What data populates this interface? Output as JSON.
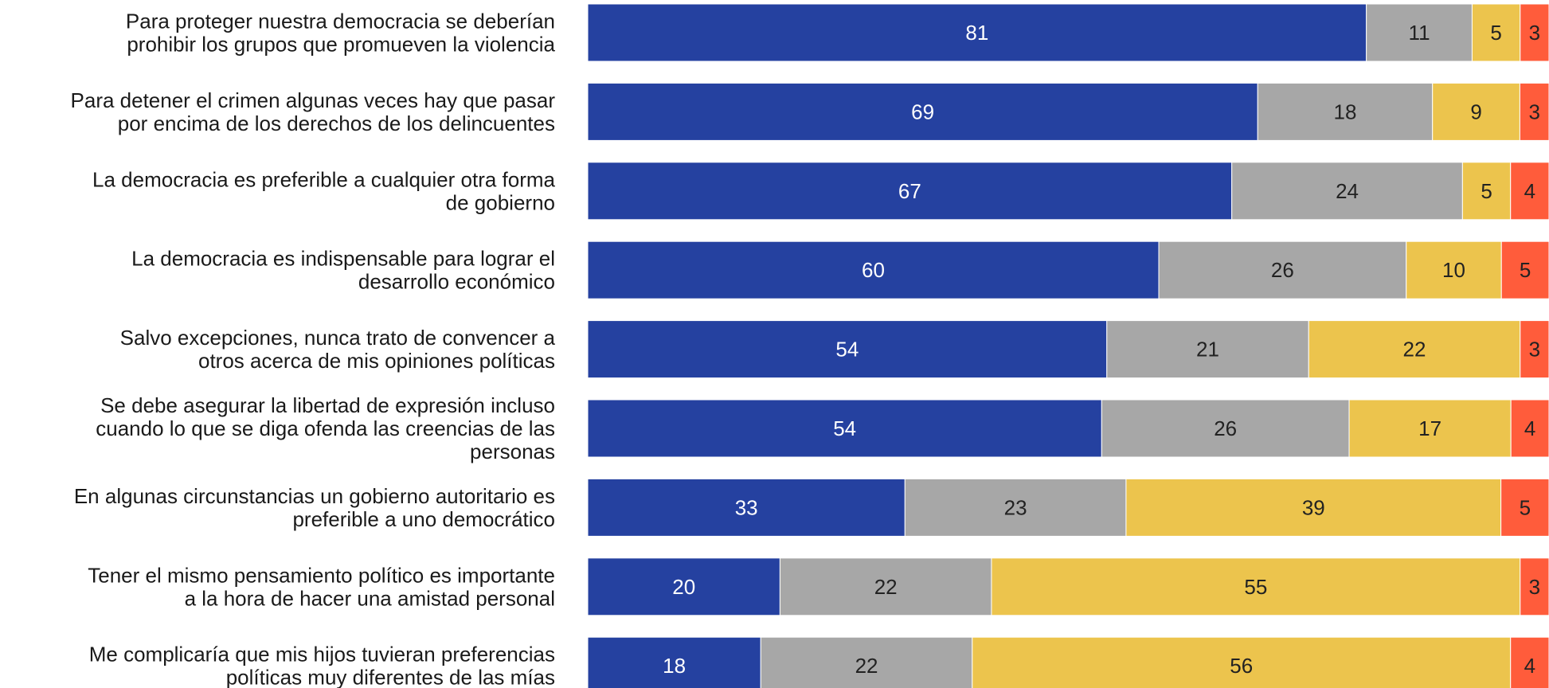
{
  "chart_data": {
    "type": "bar",
    "orientation": "horizontal",
    "stacked": true,
    "title": "",
    "xlabel": "",
    "ylabel": "",
    "legend": "none",
    "grid": false,
    "categories": [
      [
        "Para proteger nuestra democracia se deberían",
        "prohibir los grupos que promueven la violencia"
      ],
      [
        "Para detener el crimen algunas veces hay que pasar",
        "por encima de los derechos de los delincuentes"
      ],
      [
        "La democracia es preferible a cualquier otra forma",
        "de gobierno"
      ],
      [
        "La democracia es indispensable para lograr el",
        "desarrollo económico"
      ],
      [
        "Salvo excepciones, nunca trato de convencer a",
        "otros acerca de mis opiniones políticas"
      ],
      [
        "Se debe asegurar la libertad de expresión incluso",
        "cuando lo que se diga ofenda las creencias de las",
        "personas"
      ],
      [
        "En algunas circunstancias un gobierno autoritario es",
        "preferible a uno democrático"
      ],
      [
        "Tener el mismo pensamiento político es importante",
        "a la hora de hacer una amistad personal"
      ],
      [
        "Me complicaría que mis hijos tuvieran preferencias",
        "políticas muy diferentes de las mías"
      ]
    ],
    "series": [
      {
        "color": "#2541A0",
        "label_color": "#ffffff",
        "values": [
          81,
          69,
          67,
          60,
          54,
          54,
          33,
          20,
          18
        ]
      },
      {
        "color": "#A7A7A7",
        "label_color": "#222222",
        "values": [
          11,
          18,
          24,
          26,
          21,
          26,
          23,
          22,
          22
        ]
      },
      {
        "color": "#ECC44D",
        "label_color": "#222222",
        "values": [
          5,
          9,
          5,
          10,
          22,
          17,
          39,
          55,
          56
        ]
      },
      {
        "color": "#FF5C3B",
        "label_color": "#222222",
        "values": [
          3,
          3,
          4,
          5,
          3,
          4,
          5,
          3,
          4
        ]
      }
    ]
  }
}
